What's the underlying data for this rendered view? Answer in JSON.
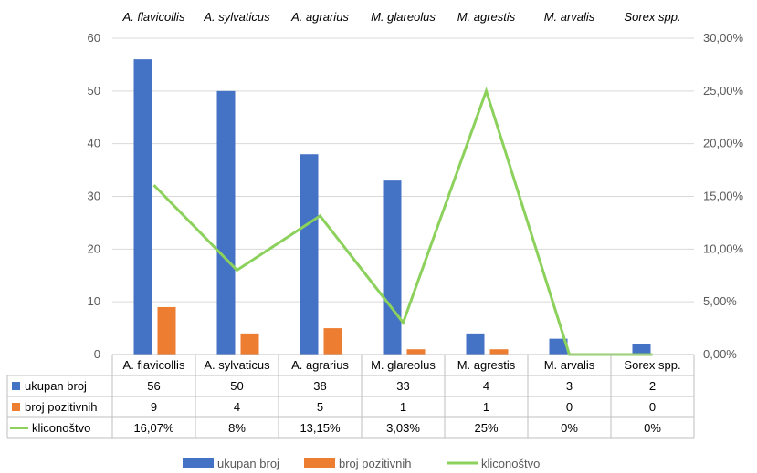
{
  "chart_data": {
    "type": "bar",
    "categories": [
      "A. flavicollis",
      "A. sylvaticus",
      "A. agrarius",
      "M. glareolus",
      "M. agrestis",
      "M. arvalis",
      "Sorex spp."
    ],
    "top_categories": [
      "A. flavicollis",
      "A. sylvaticus",
      "A. agrarius",
      "M. glareolus",
      "M. agrestis",
      "M. arvalis",
      "Sorex spp."
    ],
    "series": [
      {
        "name": "ukupan broj",
        "type": "bar",
        "axis": "left",
        "color": "#4472C4",
        "values": [
          56,
          50,
          38,
          33,
          4,
          3,
          2
        ],
        "labels": [
          "56",
          "50",
          "38",
          "33",
          "4",
          "3",
          "2"
        ]
      },
      {
        "name": "broj pozitivnih",
        "type": "bar",
        "axis": "left",
        "color": "#ED7D31",
        "values": [
          9,
          4,
          5,
          1,
          1,
          0,
          0
        ],
        "labels": [
          "9",
          "4",
          "5",
          "1",
          "1",
          "0",
          "0"
        ]
      },
      {
        "name": "kliconoštvo",
        "type": "line",
        "axis": "right",
        "color": "#8BD15C",
        "values": [
          16.07,
          8,
          13.15,
          3.03,
          25,
          0,
          0
        ],
        "labels": [
          "16,07%",
          "8%",
          "13,15%",
          "3,03%",
          "25%",
          "0%",
          "0%"
        ]
      }
    ],
    "y_left": {
      "min": 0,
      "max": 60,
      "step": 10,
      "ticks": [
        "0",
        "10",
        "20",
        "30",
        "40",
        "50",
        "60"
      ]
    },
    "y_right": {
      "min": 0,
      "max": 30,
      "step": 5,
      "ticks": [
        "0,00%",
        "5,00%",
        "10,00%",
        "15,00%",
        "20,00%",
        "25,00%",
        "30,00%"
      ]
    },
    "grid": true,
    "legend": "bottom",
    "data_table": true
  }
}
